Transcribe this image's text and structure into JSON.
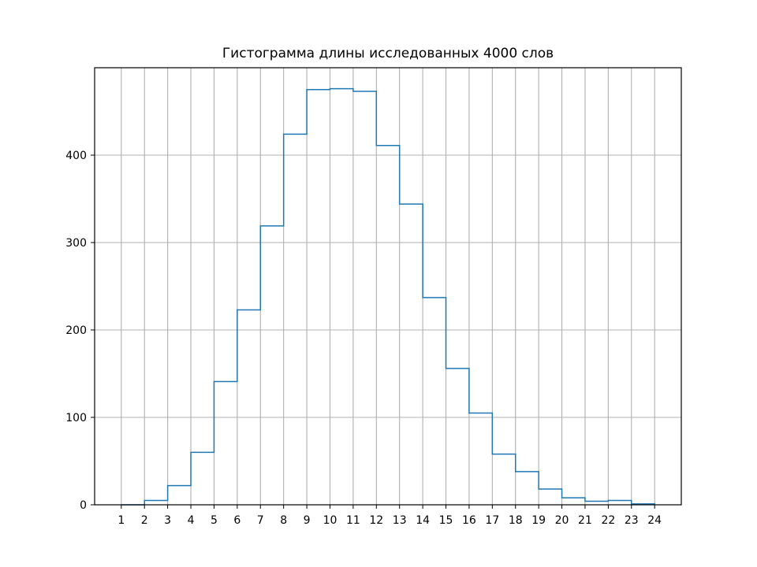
{
  "chart_data": {
    "type": "bar",
    "style": "step-histogram",
    "title": "Гистограмма длины исследованных 4000 слов",
    "xlabel": "",
    "ylabel": "",
    "bin_edges": [
      1,
      2,
      3,
      4,
      5,
      6,
      7,
      8,
      9,
      10,
      11,
      12,
      13,
      14,
      15,
      16,
      17,
      18,
      19,
      20,
      21,
      22,
      23,
      24
    ],
    "values": [
      0,
      5,
      22,
      60,
      141,
      223,
      319,
      424,
      475,
      476,
      473,
      411,
      344,
      237,
      156,
      105,
      58,
      38,
      18,
      8,
      4,
      5,
      1
    ],
    "x_ticks": [
      "1",
      "2",
      "3",
      "4",
      "5",
      "6",
      "7",
      "8",
      "9",
      "10",
      "11",
      "12",
      "13",
      "14",
      "15",
      "16",
      "17",
      "18",
      "19",
      "20",
      "21",
      "22",
      "23",
      "24"
    ],
    "y_ticks": [
      "0",
      "100",
      "200",
      "300",
      "400"
    ],
    "xlim": [
      -0.15,
      25.15
    ],
    "ylim": [
      0,
      500
    ],
    "grid": true,
    "line_color": "#1f77b4"
  }
}
